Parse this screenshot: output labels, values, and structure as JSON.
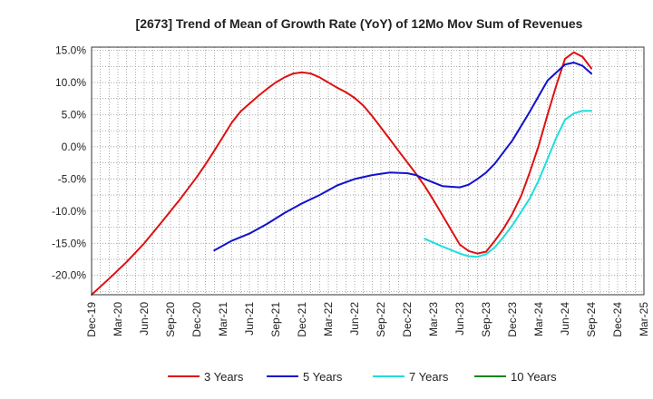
{
  "chart_data": {
    "type": "line",
    "title": "[2673]  Trend of Mean of Growth Rate (YoY) of 12Mo Mov Sum of Revenues",
    "xlabel": "",
    "ylabel": "",
    "ylim": [
      -23.0,
      15.5
    ],
    "yticks": [
      15.0,
      10.0,
      5.0,
      0.0,
      -5.0,
      -10.0,
      -15.0,
      -20.0
    ],
    "ytick_labels": [
      "15.0%",
      "10.0%",
      "5.0%",
      "0.0%",
      "-5.0%",
      "-10.0%",
      "-15.0%",
      "-20.0%"
    ],
    "x_range_months": [
      0,
      63
    ],
    "xticks": [
      0,
      3,
      6,
      9,
      12,
      15,
      18,
      21,
      24,
      27,
      30,
      33,
      36,
      39,
      42,
      45,
      48,
      51,
      54,
      57,
      60,
      63
    ],
    "xtick_labels": [
      "Dec-19",
      "Mar-20",
      "Jun-20",
      "Sep-20",
      "Dec-20",
      "Mar-21",
      "Jun-21",
      "Sep-21",
      "Dec-21",
      "Mar-22",
      "Jun-22",
      "Sep-22",
      "Dec-22",
      "Mar-23",
      "Jun-23",
      "Sep-23",
      "Dec-23",
      "Mar-24",
      "Jun-24",
      "Sep-24",
      "Dec-24",
      "Mar-25"
    ],
    "grid": true,
    "legend_position": "bottom",
    "series": [
      {
        "name": "3 Years",
        "color": "#dd1111",
        "x": [
          0,
          2,
          4,
          6,
          8,
          10,
          12,
          13,
          14,
          15,
          16,
          17,
          18,
          19,
          20,
          21,
          22,
          23,
          24,
          25,
          26,
          27,
          28,
          29,
          30,
          31,
          32,
          33,
          34,
          35,
          36,
          37,
          38,
          39,
          40,
          41,
          42,
          43,
          44,
          45,
          46,
          47,
          48,
          49,
          50,
          51,
          52,
          53,
          54,
          55,
          56,
          57,
          58,
          59,
          60
        ],
        "y": [
          -23.0,
          -20.5,
          -17.9,
          -15.0,
          -11.7,
          -8.3,
          -4.7,
          -2.7,
          -0.6,
          1.6,
          3.8,
          5.5,
          6.7,
          7.9,
          9.0,
          10.0,
          10.8,
          11.4,
          11.6,
          11.4,
          10.8,
          10.0,
          9.2,
          8.5,
          7.6,
          6.4,
          4.8,
          3.0,
          1.2,
          -0.6,
          -2.4,
          -4.2,
          -6.1,
          -8.3,
          -10.6,
          -12.9,
          -15.2,
          -16.2,
          -16.6,
          -16.3,
          -14.6,
          -12.7,
          -10.4,
          -7.6,
          -3.9,
          0.2,
          5.0,
          9.5,
          13.7,
          14.7,
          14.0,
          12.2,
          null,
          null,
          null
        ],
        "y_mapped_note": "values read off the chart"
      },
      {
        "name": "5 Years",
        "color": "#1111cc",
        "x": [
          14,
          16,
          18,
          20,
          22,
          24,
          26,
          28,
          30,
          32,
          34,
          36,
          37,
          38,
          40,
          42,
          43,
          44,
          45,
          46,
          48,
          50,
          52,
          54,
          55,
          56,
          57,
          58,
          59,
          60
        ],
        "y": [
          -16.1,
          -14.6,
          -13.5,
          -12.0,
          -10.3,
          -8.8,
          -7.5,
          -6.0,
          -5.0,
          -4.4,
          -4.0,
          -4.1,
          -4.4,
          -5.0,
          -6.1,
          -6.3,
          -5.9,
          -5.0,
          -4.0,
          -2.6,
          1.0,
          5.5,
          10.3,
          12.8,
          13.1,
          12.6,
          11.4,
          null,
          null,
          null
        ]
      },
      {
        "name": "7 Years",
        "color": "#22dddd",
        "x": [
          38,
          40,
          42,
          43,
          44,
          45,
          46,
          47,
          48,
          50,
          51,
          52,
          53,
          54,
          55,
          56,
          57
        ],
        "y": [
          -14.3,
          -15.5,
          -16.6,
          -17.0,
          -17.1,
          -16.7,
          -15.6,
          -14.0,
          -12.2,
          -8.0,
          -5.2,
          -1.9,
          1.4,
          4.2,
          5.2,
          5.6,
          5.6
        ]
      },
      {
        "name": "10 Years",
        "color": "#118811",
        "x": [],
        "y": []
      }
    ]
  }
}
